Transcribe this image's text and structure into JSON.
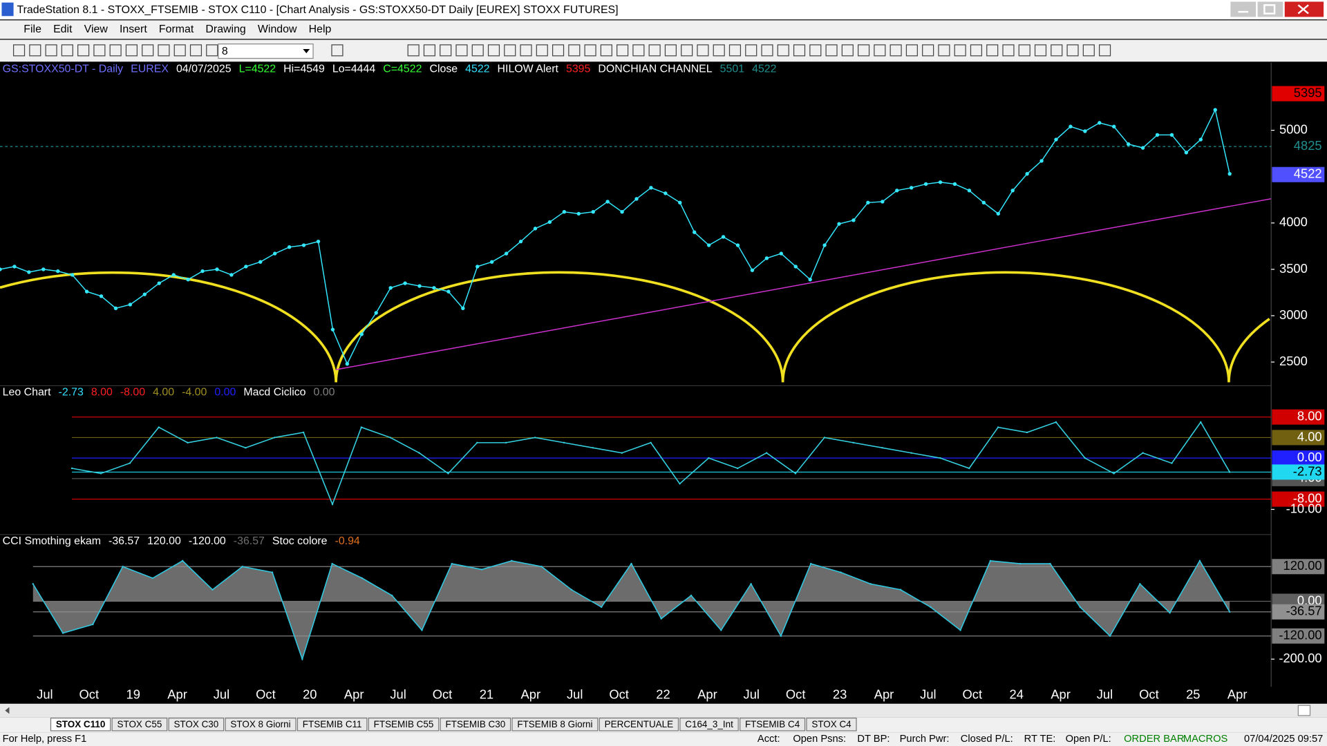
{
  "window": {
    "title": "TradeStation 8.1 - STOXX_FTSEMIB - STOX C110 - [Chart Analysis - GS:STOXX50-DT  Daily  [EUREX] STOXX FUTURES]"
  },
  "menu": [
    "File",
    "Edit",
    "View",
    "Insert",
    "Format",
    "Drawing",
    "Window",
    "Help"
  ],
  "toolbar": {
    "font_size": "8"
  },
  "price_panel": {
    "header": [
      {
        "text": "GS:STOXX50-DT - Daily",
        "color": "#6f6fff"
      },
      {
        "text": "EUREX",
        "color": "#6f6fff"
      },
      {
        "text": "04/07/2025",
        "color": "#ffffff"
      },
      {
        "text": "L=4522",
        "color": "#33ff33"
      },
      {
        "text": "Hi=4549",
        "color": "#ffffff"
      },
      {
        "text": "Lo=4444",
        "color": "#ffffff"
      },
      {
        "text": "C=4522",
        "color": "#33ff33"
      },
      {
        "text": "Close",
        "color": "#ffffff"
      },
      {
        "text": "4522",
        "color": "#33e0ff"
      },
      {
        "text": "HILOW Alert",
        "color": "#ffffff"
      },
      {
        "text": "5395",
        "color": "#ff2020"
      },
      {
        "text": "DONCHIAN CHANNEL",
        "color": "#ffffff"
      },
      {
        "text": "5501",
        "color": "#1f8f8f"
      },
      {
        "text": "4522",
        "color": "#1f8f8f"
      }
    ],
    "ylim": [
      2254,
      5721
    ],
    "yticks": [
      2500,
      3000,
      3500,
      4000,
      5000
    ],
    "badges": [
      {
        "value": 5395,
        "color": "#e00000",
        "text_color": "#000000"
      },
      {
        "value": 4825,
        "color": "#000000",
        "text_color": "#1f8f8f"
      },
      {
        "value": 4522,
        "color": "#5050ff",
        "text_color": "#ffffff"
      }
    ],
    "color": "#33e8ff",
    "values": [
      3500,
      3530,
      3470,
      3500,
      3480,
      3440,
      3260,
      3210,
      3080,
      3120,
      3230,
      3350,
      3440,
      3390,
      3480,
      3500,
      3440,
      3530,
      3580,
      3670,
      3740,
      3760,
      3800,
      2850,
      2480,
      2800,
      3030,
      3300,
      3350,
      3320,
      3300,
      3260,
      3080,
      3530,
      3580,
      3670,
      3800,
      3940,
      4010,
      4120,
      4100,
      4120,
      4230,
      4120,
      4260,
      4380,
      4320,
      4220,
      3900,
      3760,
      3850,
      3760,
      3490,
      3620,
      3670,
      3530,
      3390,
      3760,
      3990,
      4030,
      4220,
      4230,
      4350,
      4380,
      4420,
      4440,
      4420,
      4350,
      4220,
      4100,
      4350,
      4530,
      4670,
      4900,
      5040,
      4990,
      5080,
      5040,
      4850,
      4810,
      4950,
      4950,
      4760,
      4900,
      5220,
      4530
    ]
  },
  "leo_panel": {
    "header": [
      {
        "text": "Leo Chart",
        "color": "#ffffff"
      },
      {
        "text": "-2.73",
        "color": "#33e0ff"
      },
      {
        "text": "8.00",
        "color": "#ff2020"
      },
      {
        "text": "-8.00",
        "color": "#ff2020"
      },
      {
        "text": "4.00",
        "color": "#a09020"
      },
      {
        "text": "-4.00",
        "color": "#a09020"
      },
      {
        "text": "0.00",
        "color": "#2020ff"
      },
      {
        "text": "Macd Ciclico",
        "color": "#ffffff"
      },
      {
        "text": "0.00",
        "color": "#808080"
      }
    ],
    "ylim": [
      -14.9,
      11.3
    ],
    "levels": [
      {
        "value": 8,
        "label": "8.00",
        "color": "#d00000",
        "text_color": "#ffffff"
      },
      {
        "value": 4,
        "label": "4.00",
        "color": "#706010",
        "text_color": "#ffffff"
      },
      {
        "value": 0,
        "label": "0.00",
        "color": "#2020ff",
        "text_color": "#ffffff"
      },
      {
        "value": -4,
        "label": "-4.00",
        "color": "#555555",
        "text_color": "#ffffff"
      },
      {
        "value": -8,
        "label": "-8.00",
        "color": "#d00000",
        "text_color": "#ffffff"
      },
      {
        "value": -2.73,
        "label": "-2.73",
        "color": "#20d8f0",
        "text_color": "#000000"
      }
    ],
    "yticks": [
      {
        "value": -10,
        "label": "-10.00"
      }
    ],
    "color": "#33d0e0",
    "values": [
      -2,
      -3,
      -1,
      6,
      3,
      4,
      2,
      4,
      5,
      -9,
      6,
      4,
      1,
      -3,
      3,
      3,
      4,
      3,
      2,
      1,
      3,
      -5,
      0,
      -2,
      1,
      -3,
      4,
      3,
      2,
      1,
      0,
      -2,
      6,
      5,
      7,
      0,
      -3,
      1,
      -1,
      7,
      -2.73
    ]
  },
  "cci_panel": {
    "header": [
      {
        "text": "CCI Smothing ekam",
        "color": "#ffffff"
      },
      {
        "text": "-36.57",
        "color": "#ffffff"
      },
      {
        "text": "120.00",
        "color": "#ffffff"
      },
      {
        "text": "-120.00",
        "color": "#ffffff"
      },
      {
        "text": "-36.57",
        "color": "#707070"
      },
      {
        "text": "Stoc colore",
        "color": "#ffffff"
      },
      {
        "text": "-0.94",
        "color": "#e07020"
      }
    ],
    "ylim": [
      -284,
      184
    ],
    "levels": [
      {
        "value": 120,
        "label": "120.00",
        "color": "#808080",
        "text_color": "#000000"
      },
      {
        "value": 0,
        "label": "0.00",
        "color": "#606060",
        "text_color": "#ffffff"
      },
      {
        "value": -36.57,
        "label": "-36.57",
        "color": "#909090",
        "text_color": "#000000"
      },
      {
        "value": -120,
        "label": "-120.00",
        "color": "#808080",
        "text_color": "#000000"
      }
    ],
    "yticks": [
      {
        "value": -200,
        "label": "-200.00"
      }
    ],
    "color": "#909090",
    "values": [
      60,
      -110,
      -80,
      120,
      80,
      140,
      40,
      120,
      100,
      -200,
      130,
      80,
      20,
      -100,
      130,
      110,
      140,
      120,
      40,
      -20,
      130,
      -60,
      20,
      -100,
      60,
      -120,
      130,
      100,
      60,
      40,
      -20,
      -100,
      140,
      130,
      130,
      -20,
      -120,
      60,
      -40,
      140,
      -36.57
    ]
  },
  "x_axis": {
    "labels": [
      "Jul",
      "Oct",
      "19",
      "Apr",
      "Jul",
      "Oct",
      "20",
      "Apr",
      "Jul",
      "Oct",
      "21",
      "Apr",
      "Jul",
      "Oct",
      "22",
      "Apr",
      "Jul",
      "Oct",
      "23",
      "Apr",
      "Jul",
      "Oct",
      "24",
      "Apr",
      "Jul",
      "Oct",
      "25",
      "Apr"
    ]
  },
  "tabs": [
    "STOX C110",
    "STOX C55",
    "STOX  C30",
    "STOX  8 Giorni",
    "FTSEMIB C11",
    "FTSEMIB C55",
    "FTSEMIB C30",
    "FTSEMIB  8 Giorni",
    "PERCENTUALE",
    "C164_3_Int",
    "FTSEMIB C4",
    "STOX  C4"
  ],
  "status": {
    "help": "For Help, press F1",
    "fields": [
      "Acct:",
      "Open Psns:",
      "DT BP:",
      "Purch Pwr:",
      "Closed P/L:",
      "RT TE:",
      "Open P/L:"
    ],
    "order_bar": "ORDER BAR",
    "macros": "MACROS",
    "datetime": "07/04/2025 09:57"
  }
}
